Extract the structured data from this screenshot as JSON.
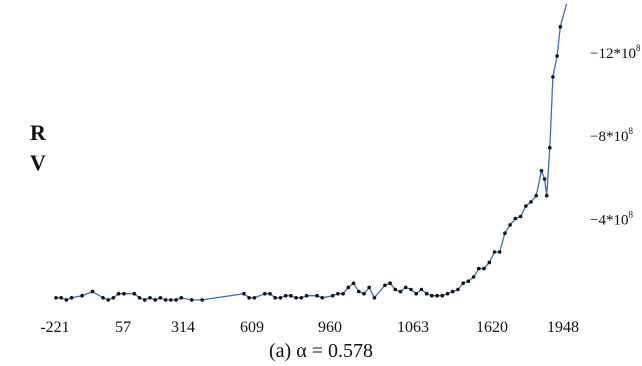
{
  "chart_data": {
    "type": "line",
    "caption": "(a) α = 0.578",
    "ylabel_lines": [
      "R",
      "V"
    ],
    "x_tick_labels": [
      "-221",
      "57",
      "314",
      "609",
      "960",
      "1063",
      "1620",
      "1948"
    ],
    "y_ticks": [
      {
        "value": -4,
        "label": "−4*10",
        "exp": "8"
      },
      {
        "value": -8,
        "label": "−8*10",
        "exp": "8"
      },
      {
        "value": -12,
        "label": "−12*10",
        "exp": "8"
      }
    ],
    "y_units_note": "values in units of 10^8; axis increases upward in magnitude",
    "x_index_range": [
      0,
      100
    ],
    "y_range": [
      0,
      -14.2
    ],
    "grid": false,
    "series_color": "#3a6fc4",
    "series": [
      {
        "x": [
          0,
          1,
          2,
          3,
          5,
          7,
          9,
          10,
          11,
          12,
          13,
          15,
          16,
          17,
          18,
          19,
          20,
          21,
          22,
          23,
          24,
          26,
          28,
          36,
          37,
          38,
          40,
          41,
          42,
          43,
          44,
          45,
          46,
          47,
          48,
          50,
          51,
          53,
          54,
          55,
          56,
          57,
          58,
          59,
          60,
          61,
          63,
          64,
          65,
          66,
          67,
          68,
          69,
          70,
          71,
          72,
          73,
          74,
          75,
          76,
          77,
          78,
          79,
          80,
          81,
          82,
          83,
          84,
          85,
          86,
          87,
          88,
          89,
          90,
          91,
          92,
          93,
          93.6,
          94,
          94.6,
          95.2,
          96,
          96.6
        ],
        "y": [
          -0.2,
          -0.2,
          -0.1,
          -0.2,
          -0.3,
          -0.5,
          -0.2,
          -0.1,
          -0.2,
          -0.4,
          -0.4,
          -0.4,
          -0.2,
          -0.1,
          -0.2,
          -0.1,
          -0.2,
          -0.1,
          -0.1,
          -0.1,
          -0.2,
          -0.1,
          -0.1,
          -0.4,
          -0.2,
          -0.2,
          -0.4,
          -0.4,
          -0.2,
          -0.2,
          -0.3,
          -0.3,
          -0.2,
          -0.2,
          -0.3,
          -0.3,
          -0.2,
          -0.3,
          -0.4,
          -0.4,
          -0.7,
          -0.9,
          -0.5,
          -0.4,
          -0.7,
          -0.2,
          -0.8,
          -0.9,
          -0.6,
          -0.5,
          -0.7,
          -0.6,
          -0.4,
          -0.6,
          -0.4,
          -0.3,
          -0.3,
          -0.3,
          -0.4,
          -0.5,
          -0.6,
          -0.9,
          -1.0,
          -1.2,
          -1.6,
          -1.6,
          -1.9,
          -2.4,
          -2.4,
          -3.3,
          -3.7,
          -4.0,
          -4.1,
          -4.6,
          -4.8,
          -5.1,
          -6.3,
          -5.9,
          -5.1,
          -7.4,
          -10.8,
          -11.8,
          -13.2
        ]
      }
    ]
  }
}
